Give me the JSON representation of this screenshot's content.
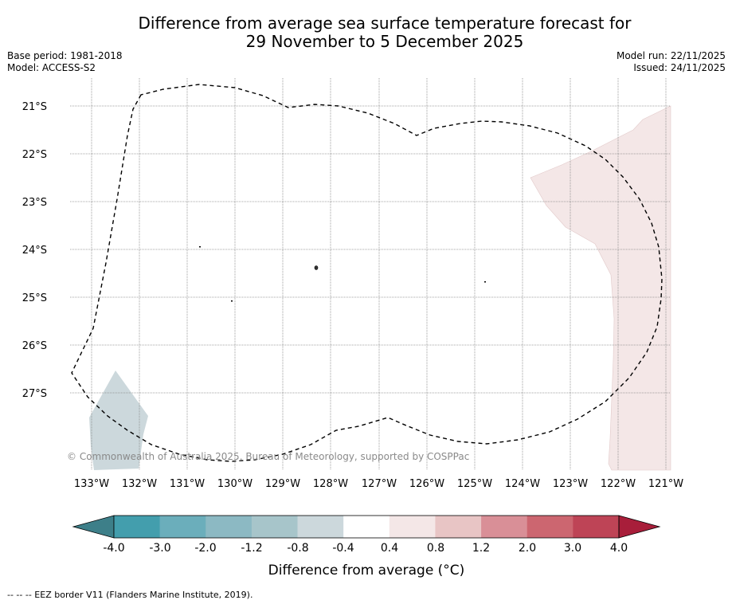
{
  "title": {
    "line1": "Difference from average sea surface temperature forecast for",
    "line2": "29 November to 5 December 2025"
  },
  "meta": {
    "base_period": "Base period: 1981-2018",
    "model": "Model: ACCESS-S2",
    "model_run": "Model run: 22/11/2025",
    "issued": "Issued: 24/11/2025"
  },
  "map": {
    "lon_labels": [
      "133°W",
      "132°W",
      "131°W",
      "130°W",
      "129°W",
      "128°W",
      "127°W",
      "126°W",
      "125°W",
      "124°W",
      "123°W",
      "122°W",
      "121°W"
    ],
    "lat_labels": [
      "21°S",
      "22°S",
      "23°S",
      "24°S",
      "25°S",
      "26°S",
      "27°S"
    ],
    "copyright": "© Commonwealth of Australia 2025, Bureau of Meteorology, supported by COSPPac",
    "colors": {
      "warm_fill": "#f4e7e7",
      "cool_fill": "#ccd8dc",
      "eez_line": "#000000",
      "grid_line": "#888888"
    }
  },
  "colorbar": {
    "ticks": [
      "-4.0",
      "-3.0",
      "-2.0",
      "-1.2",
      "-0.8",
      "-0.4",
      "0.4",
      "0.8",
      "1.2",
      "2.0",
      "3.0",
      "4.0"
    ],
    "colors": [
      "#439ead",
      "#6baebb",
      "#8cb9c3",
      "#a7c5ca",
      "#ccd8dc",
      "#ffffff",
      "#f4e7e7",
      "#e8c5c5",
      "#d98f97",
      "#cc6670",
      "#be4456"
    ],
    "low_extend": "#3d7f89",
    "high_extend": "#a81e3a",
    "label": "Difference from average (°C)"
  },
  "footnote": "--  --  -- EEZ border V11 (Flanders Marine Institute, 2019)."
}
